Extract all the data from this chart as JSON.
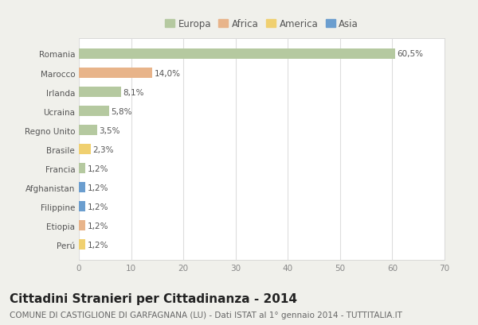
{
  "countries": [
    "Romania",
    "Marocco",
    "Irlanda",
    "Ucraina",
    "Regno Unito",
    "Brasile",
    "Francia",
    "Afghanistan",
    "Filippine",
    "Etiopia",
    "Perú"
  ],
  "values": [
    60.5,
    14.0,
    8.1,
    5.8,
    3.5,
    2.3,
    1.2,
    1.2,
    1.2,
    1.2,
    1.2
  ],
  "labels": [
    "60,5%",
    "14,0%",
    "8,1%",
    "5,8%",
    "3,5%",
    "2,3%",
    "1,2%",
    "1,2%",
    "1,2%",
    "1,2%",
    "1,2%"
  ],
  "continents": [
    "Europa",
    "Africa",
    "Europa",
    "Europa",
    "Europa",
    "America",
    "Europa",
    "Asia",
    "Asia",
    "Africa",
    "America"
  ],
  "continent_colors": {
    "Europa": "#b5c9a0",
    "Africa": "#e8b48a",
    "America": "#f0d070",
    "Asia": "#6b9ecf"
  },
  "legend_order": [
    "Europa",
    "Africa",
    "America",
    "Asia"
  ],
  "background_color": "#f0f0eb",
  "plot_bg_color": "#ffffff",
  "xlim": [
    0,
    70
  ],
  "xticks": [
    0,
    10,
    20,
    30,
    40,
    50,
    60,
    70
  ],
  "title": "Cittadini Stranieri per Cittadinanza - 2014",
  "subtitle": "COMUNE DI CASTIGLIONE DI GARFAGNANA (LU) - Dati ISTAT al 1° gennaio 2014 - TUTTITALIA.IT",
  "title_fontsize": 11,
  "subtitle_fontsize": 7.5,
  "label_fontsize": 7.5,
  "tick_fontsize": 7.5,
  "legend_fontsize": 8.5
}
